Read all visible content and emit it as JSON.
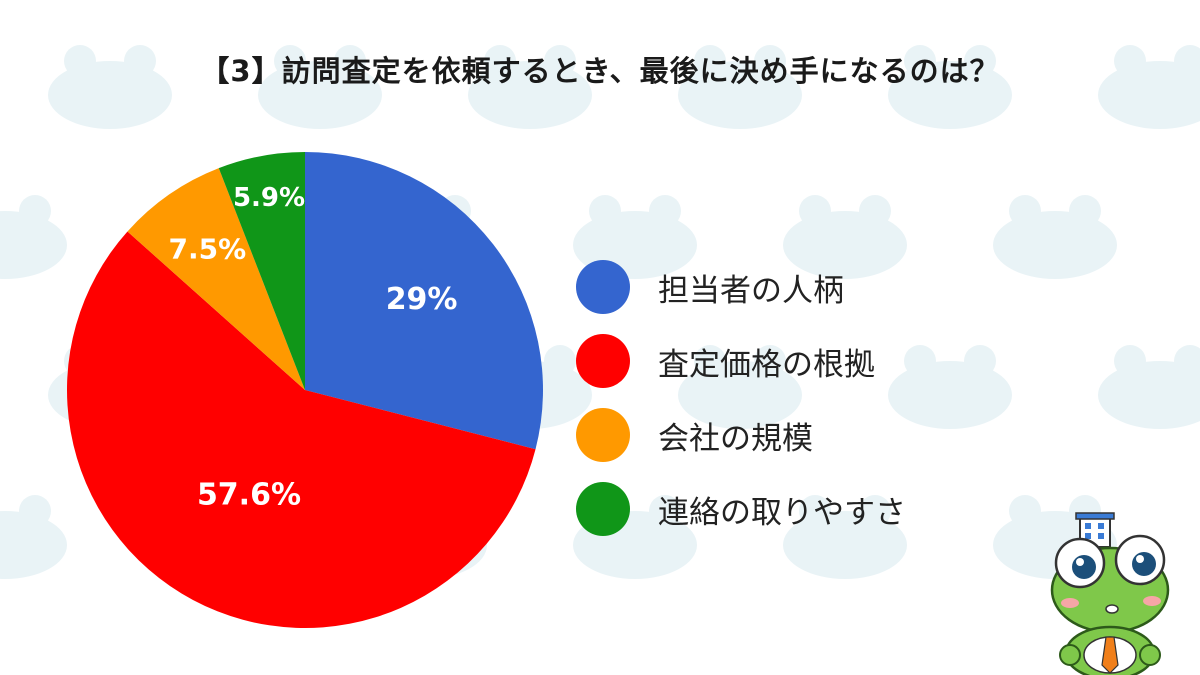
{
  "title": "【3】訪問査定を依頼するとき、最後に決め手になるのは？",
  "chart_data": {
    "type": "pie",
    "title": "【3】訪問査定を依頼するとき、最後に決め手になるのは？",
    "categories": [
      "担当者の人柄",
      "査定価格の根拠",
      "会社の規模",
      "連絡の取りやすさ"
    ],
    "values": [
      29,
      57.6,
      7.5,
      5.9
    ],
    "data_labels": [
      "29%",
      "57.6%",
      "7.5%",
      "5.9%"
    ],
    "colors": [
      "#3465cf",
      "#ff0000",
      "#ff9900",
      "#109618"
    ],
    "start_angle": "12 o'clock",
    "direction": "clockwise",
    "legend_position": "right"
  },
  "legend": {
    "items": [
      {
        "label": "担当者の人柄",
        "color": "#3465cf"
      },
      {
        "label": "査定価格の根拠",
        "color": "#ff0000"
      },
      {
        "label": "会社の規模",
        "color": "#ff9900"
      },
      {
        "label": "連絡の取りやすさ",
        "color": "#109618"
      }
    ]
  },
  "background": {
    "pattern_color": "#e9f3f6",
    "page_color": "#ffffff"
  },
  "mascot": {
    "icon": "frog-mascot-icon",
    "body_color": "#7fc84a",
    "tie_color": "#f07f1a"
  }
}
